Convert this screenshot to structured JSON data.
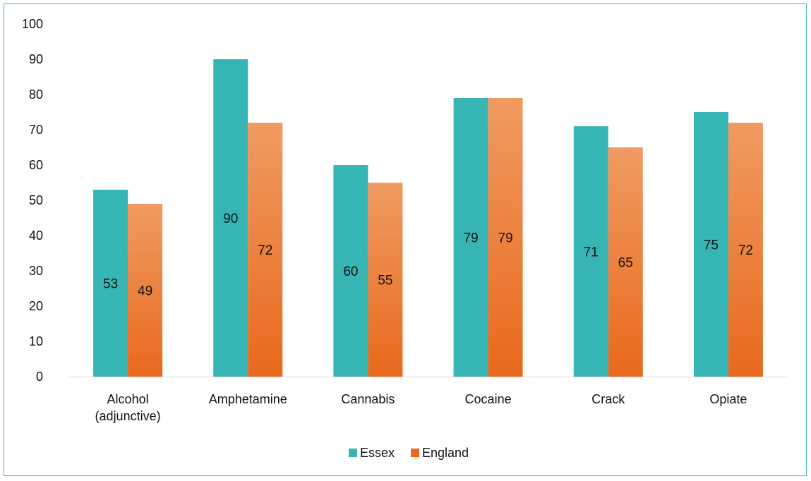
{
  "chart_data": {
    "type": "bar",
    "title": "",
    "xlabel": "",
    "ylabel": "",
    "categories": [
      [
        "Alcohol",
        "(adjunctive)"
      ],
      [
        "Amphetamine"
      ],
      [
        "Cannabis"
      ],
      [
        "Cocaine"
      ],
      [
        "Crack"
      ],
      [
        "Opiate"
      ]
    ],
    "series": [
      {
        "name": "Essex",
        "values": [
          53,
          90,
          60,
          79,
          71,
          75
        ],
        "color": "#37b5b5"
      },
      {
        "name": "England",
        "values": [
          49,
          72,
          55,
          79,
          65,
          72
        ],
        "color_top": "#f09b62",
        "color_bottom": "#e8691d"
      }
    ],
    "ylim": [
      0,
      100
    ],
    "yticks": [
      0,
      10,
      20,
      30,
      40,
      50,
      60,
      70,
      80,
      90,
      100
    ],
    "grid": false,
    "data_labels": true,
    "legend_position": "bottom",
    "frame_color": "#46b2b5"
  }
}
